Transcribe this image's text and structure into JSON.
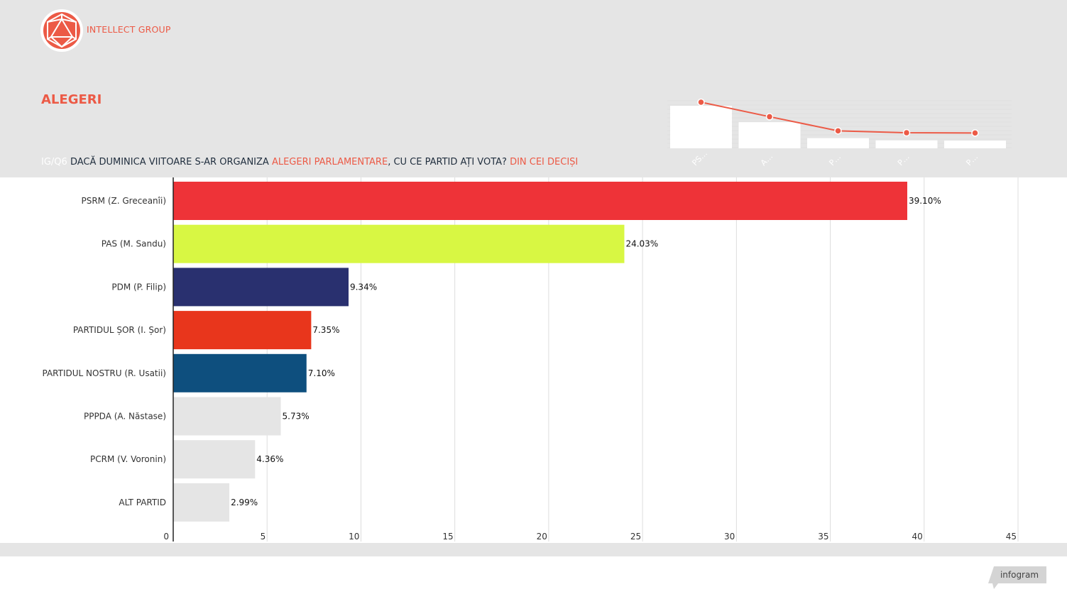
{
  "brand": {
    "name": "INTELLECT GROUP"
  },
  "title": "ALEGERI",
  "subtitle": {
    "code": "IG/Q6",
    "part1": "DACĂ DUMINICA VIITOARE S-AR ORGANIZA ",
    "highlight1": "ALEGERI PARLAMENTARE",
    "part2": ", CU CE PARTID AȚI VOTA? ",
    "highlight2": "DIN CEI DECIȘI"
  },
  "mini_chart": {
    "labels": [
      "PS…",
      "A…",
      "P…",
      "P…",
      "P…"
    ]
  },
  "chart_data": {
    "type": "bar",
    "orientation": "horizontal",
    "categories": [
      "PSRM (Z. Greceanîi)",
      "PAS (M. Sandu)",
      "PDM (P. Filip)",
      "PARTIDUL ȘOR (I. Șor)",
      "PARTIDUL NOSTRU (R. Usatii)",
      "PPPDA (A. Năstase)",
      "PCRM (V. Voronin)",
      "ALT PARTID"
    ],
    "values": [
      39.1,
      24.03,
      9.34,
      7.35,
      7.1,
      5.73,
      4.36,
      2.99
    ],
    "value_labels": [
      "39.10%",
      "24.03%",
      "9.34%",
      "7.35%",
      "7.10%",
      "5.73%",
      "4.36%",
      "2.99%"
    ],
    "colors": [
      "#ee3338",
      "#d8f743",
      "#29306f",
      "#e8361c",
      "#0e4f7e",
      "#e5e5e5",
      "#e5e5e5",
      "#e5e5e5"
    ],
    "xlim": [
      0,
      45
    ],
    "xticks": [
      0,
      5,
      10,
      15,
      20,
      25,
      30,
      35,
      40,
      45
    ],
    "grid": true
  },
  "footer": {
    "badge": "infogram"
  },
  "colors": {
    "accent": "#ec5a46",
    "header_bg": "#e5e5e5"
  }
}
